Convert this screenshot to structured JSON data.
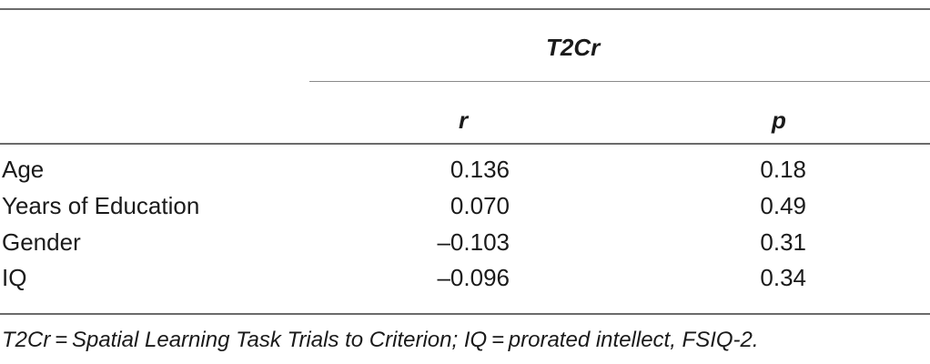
{
  "table": {
    "group_header": "T2Cr",
    "columns": [
      "r",
      "p"
    ],
    "rows": [
      {
        "label": "Age",
        "r": "0.136",
        "p": "0.18"
      },
      {
        "label": "Years of Education",
        "r": "0.070",
        "p": "0.49"
      },
      {
        "label": "Gender",
        "r": "–0.103",
        "p": "0.31"
      },
      {
        "label": "IQ",
        "r": "–0.096",
        "p": "0.34"
      }
    ],
    "footnote": "T2Cr = Spatial Learning Task Trials to Criterion; IQ = prorated intellect, FSIQ-2."
  }
}
